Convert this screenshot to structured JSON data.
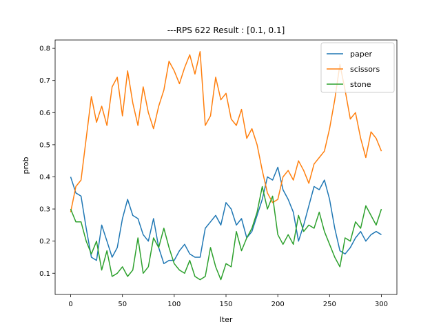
{
  "chart_data": {
    "type": "line",
    "title": "---RPS 622 Result : [0.1, 0.1]",
    "xlabel": "Iter",
    "ylabel": "prob",
    "xlim": [
      -15,
      315
    ],
    "ylim": [
      0.034,
      0.826
    ],
    "xticks": [
      0,
      50,
      100,
      150,
      200,
      250,
      300
    ],
    "yticks": [
      0.1,
      0.2,
      0.3,
      0.4,
      0.5,
      0.6,
      0.7,
      0.8
    ],
    "legend_position": "top-right",
    "grid": false,
    "series": [
      {
        "name": "paper",
        "color": "#1f77b4",
        "x": [
          0,
          5,
          10,
          15,
          20,
          25,
          30,
          35,
          40,
          45,
          50,
          55,
          60,
          65,
          70,
          75,
          80,
          85,
          90,
          95,
          100,
          105,
          110,
          115,
          120,
          125,
          130,
          135,
          140,
          145,
          150,
          155,
          160,
          165,
          170,
          175,
          180,
          185,
          190,
          195,
          200,
          205,
          210,
          215,
          220,
          225,
          230,
          235,
          240,
          245,
          250,
          255,
          260,
          265,
          270,
          275,
          280,
          285,
          290,
          295,
          300
        ],
        "values": [
          0.4,
          0.35,
          0.34,
          0.24,
          0.15,
          0.14,
          0.25,
          0.2,
          0.15,
          0.18,
          0.27,
          0.33,
          0.28,
          0.27,
          0.22,
          0.2,
          0.27,
          0.18,
          0.13,
          0.14,
          0.14,
          0.17,
          0.19,
          0.16,
          0.15,
          0.15,
          0.24,
          0.26,
          0.28,
          0.25,
          0.32,
          0.3,
          0.25,
          0.27,
          0.21,
          0.23,
          0.28,
          0.33,
          0.4,
          0.39,
          0.43,
          0.36,
          0.33,
          0.29,
          0.2,
          0.25,
          0.31,
          0.37,
          0.36,
          0.39,
          0.33,
          0.24,
          0.17,
          0.16,
          0.18,
          0.21,
          0.23,
          0.2,
          0.22,
          0.23,
          0.22
        ]
      },
      {
        "name": "scissors",
        "color": "#ff7f0e",
        "x": [
          0,
          5,
          10,
          15,
          20,
          25,
          30,
          35,
          40,
          45,
          50,
          55,
          60,
          65,
          70,
          75,
          80,
          85,
          90,
          95,
          100,
          105,
          110,
          115,
          120,
          125,
          130,
          135,
          140,
          145,
          150,
          155,
          160,
          165,
          170,
          175,
          180,
          185,
          190,
          195,
          200,
          205,
          210,
          215,
          220,
          225,
          230,
          235,
          240,
          245,
          250,
          255,
          260,
          265,
          270,
          275,
          280,
          285,
          290,
          295,
          300
        ],
        "values": [
          0.29,
          0.37,
          0.39,
          0.52,
          0.65,
          0.57,
          0.62,
          0.56,
          0.68,
          0.71,
          0.59,
          0.73,
          0.63,
          0.56,
          0.68,
          0.6,
          0.55,
          0.62,
          0.67,
          0.76,
          0.73,
          0.69,
          0.74,
          0.78,
          0.72,
          0.79,
          0.56,
          0.59,
          0.71,
          0.64,
          0.66,
          0.58,
          0.56,
          0.61,
          0.52,
          0.55,
          0.5,
          0.42,
          0.35,
          0.32,
          0.33,
          0.4,
          0.42,
          0.39,
          0.45,
          0.42,
          0.38,
          0.44,
          0.46,
          0.48,
          0.55,
          0.64,
          0.75,
          0.67,
          0.58,
          0.6,
          0.52,
          0.46,
          0.54,
          0.52,
          0.48
        ]
      },
      {
        "name": "stone",
        "color": "#2ca02c",
        "x": [
          0,
          5,
          10,
          15,
          20,
          25,
          30,
          35,
          40,
          45,
          50,
          55,
          60,
          65,
          70,
          75,
          80,
          85,
          90,
          95,
          100,
          105,
          110,
          115,
          120,
          125,
          130,
          135,
          140,
          145,
          150,
          155,
          160,
          165,
          170,
          175,
          180,
          185,
          190,
          195,
          200,
          205,
          210,
          215,
          220,
          225,
          230,
          235,
          240,
          245,
          250,
          255,
          260,
          265,
          270,
          275,
          280,
          285,
          290,
          295,
          300
        ],
        "values": [
          0.3,
          0.26,
          0.26,
          0.2,
          0.16,
          0.2,
          0.11,
          0.17,
          0.09,
          0.1,
          0.12,
          0.09,
          0.11,
          0.21,
          0.1,
          0.12,
          0.21,
          0.18,
          0.24,
          0.18,
          0.13,
          0.11,
          0.1,
          0.14,
          0.09,
          0.08,
          0.09,
          0.18,
          0.12,
          0.08,
          0.13,
          0.12,
          0.23,
          0.17,
          0.21,
          0.24,
          0.29,
          0.37,
          0.3,
          0.34,
          0.22,
          0.19,
          0.22,
          0.19,
          0.28,
          0.23,
          0.25,
          0.24,
          0.29,
          0.23,
          0.19,
          0.15,
          0.12,
          0.21,
          0.2,
          0.26,
          0.24,
          0.31,
          0.28,
          0.25,
          0.3
        ]
      }
    ]
  }
}
